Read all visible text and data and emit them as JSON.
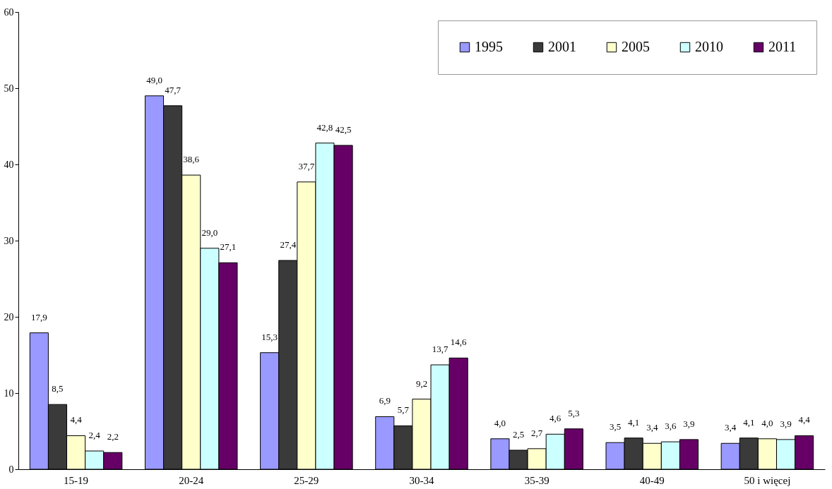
{
  "chart_data": {
    "type": "bar",
    "categories": [
      "15-19",
      "20-24",
      "25-29",
      "30-34",
      "35-39",
      "40-49",
      "50 i więcej"
    ],
    "ylim": [
      0,
      60
    ],
    "yticks": [
      0,
      10,
      20,
      30,
      40,
      50,
      60
    ],
    "grid": false,
    "legend": "top right",
    "series": [
      {
        "name": "1995",
        "color": "#9999ff",
        "values": [
          17.9,
          49.0,
          15.3,
          6.9,
          4.0,
          3.5,
          3.4
        ],
        "value_labels": [
          "17,9",
          "49,0",
          "15,3",
          "6,9",
          "4,0",
          "3,5",
          "3,4"
        ]
      },
      {
        "name": "2001",
        "color": "#3a3a3a",
        "values": [
          8.5,
          47.7,
          27.4,
          5.7,
          2.5,
          4.1,
          4.1
        ],
        "value_labels": [
          "8,5",
          "47,7",
          "27,4",
          "5,7",
          "2,5",
          "4,1",
          "4,1"
        ]
      },
      {
        "name": "2005",
        "color": "#ffffcc",
        "values": [
          4.4,
          38.6,
          37.7,
          9.2,
          2.7,
          3.4,
          4.0
        ],
        "value_labels": [
          "4,4",
          "38,6",
          "37,7",
          "9,2",
          "2,7",
          "3,4",
          "4,0"
        ]
      },
      {
        "name": "2010",
        "color": "#ccffff",
        "values": [
          2.4,
          29.0,
          42.8,
          13.7,
          4.6,
          3.6,
          3.9
        ],
        "value_labels": [
          "2,4",
          "29,0",
          "42,8",
          "13,7",
          "4,6",
          "3,6",
          "3,9"
        ]
      },
      {
        "name": "2011",
        "color": "#660066",
        "values": [
          2.2,
          27.1,
          42.5,
          14.6,
          5.3,
          3.9,
          4.4
        ],
        "value_labels": [
          "2,2",
          "27,1",
          "42,5",
          "14,6",
          "5,3",
          "3,9",
          "4,4"
        ]
      }
    ]
  }
}
